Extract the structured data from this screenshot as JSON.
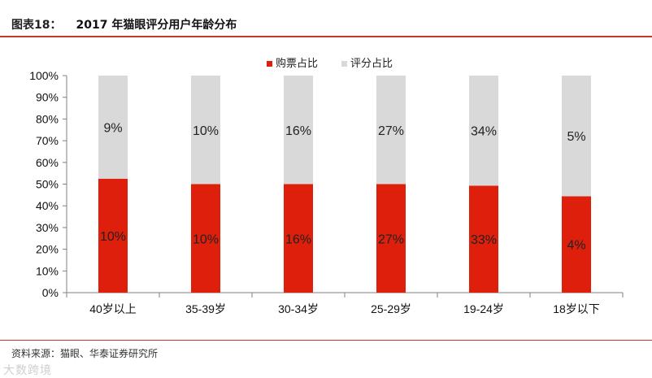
{
  "header": {
    "figure_label": "图表18：",
    "title": "2017 年猫眼评分用户年龄分布"
  },
  "footer": {
    "source": "资料来源：猫眼、华泰证券研究所",
    "watermark": "大数跨境"
  },
  "colors": {
    "ticket": "#dd1f0b",
    "rating": "#d9d9d9",
    "accent_rule": "#c0392b",
    "axis": "#808080"
  },
  "chart_data": {
    "type": "bar",
    "stacked": true,
    "categories": [
      "40岁以上",
      "35-39岁",
      "30-34岁",
      "25-29岁",
      "19-24岁",
      "18岁以下"
    ],
    "series": [
      {
        "name": "购票占比",
        "values": [
          52.5,
          50,
          50,
          50,
          49.3,
          44.4
        ],
        "labels": [
          "10%",
          "10%",
          "16%",
          "27%",
          "33%",
          "4%"
        ]
      },
      {
        "name": "评分占比",
        "values": [
          47.5,
          50,
          50,
          50,
          50.7,
          55.6
        ],
        "labels": [
          "9%",
          "10%",
          "16%",
          "27%",
          "34%",
          "5%"
        ]
      }
    ],
    "yticks": [
      "0%",
      "10%",
      "20%",
      "30%",
      "40%",
      "50%",
      "60%",
      "70%",
      "80%",
      "90%",
      "100%"
    ],
    "ylim": [
      0,
      100
    ],
    "grid": false,
    "legend": "top-center"
  }
}
